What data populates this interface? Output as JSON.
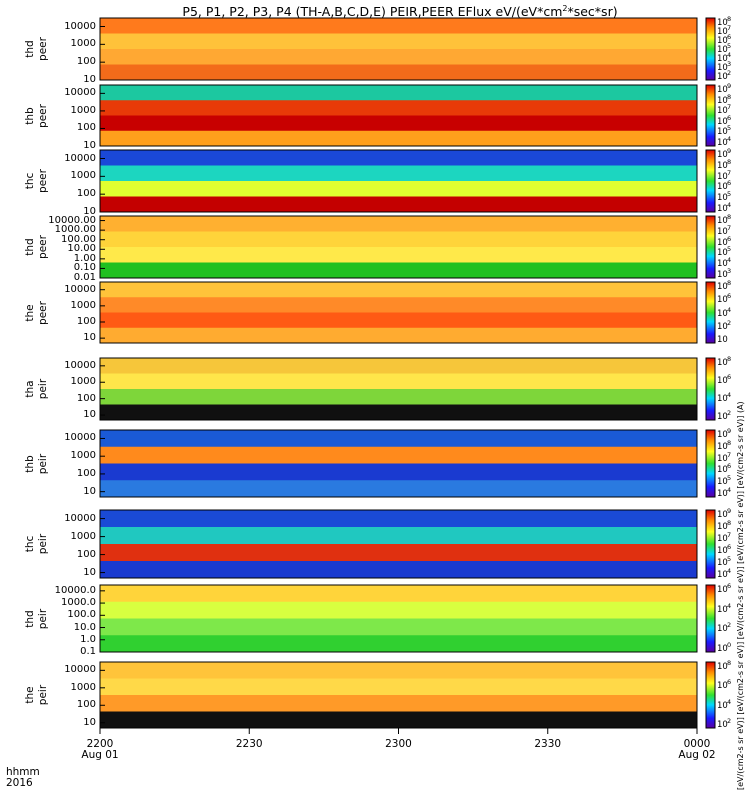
{
  "chart_data": {
    "type": "heatmap",
    "title": "P5, P1, P2, P3, P4 (TH-A,B,C,D,E) PEIR,PEER EFlux eV/(eV*cm^2*sec*sr)",
    "title_prefix": "P5, P1, P2, P3, P4 (TH-A,B,C,D,E) PEIR,PEER EFlux eV/(eV*cm",
    "title_sup": "2",
    "title_suffix": "*sec*sr)",
    "colorbar_title": "[eV/(cm2-s sr eV)] [eV/(cm2-s sr eV)] [eV/(cm2-s sr eV)] [eV/(cm2-s sr eV)] [eV/(cm2-s sr eV)] (A)",
    "x_time_labels": [
      "2200",
      "2230",
      "2300",
      "2330",
      "0000"
    ],
    "x_date_labels": [
      "Aug 01",
      "",
      "",
      "",
      "Aug 02"
    ],
    "x_prefix_top": "hhmm",
    "x_prefix_bottom": "2016",
    "panels": [
      {
        "label": [
          "thd",
          "peer"
        ],
        "y_ticks": [
          "10000",
          "1000",
          "100",
          "10"
        ],
        "ylim": [
          10,
          30000
        ],
        "y_scale": "log",
        "cb_ticks": [
          "10",
          "10",
          "10",
          "10",
          "10",
          "10",
          "10"
        ],
        "cb_exp": [
          "8",
          "7",
          "6",
          "5",
          "4",
          "3",
          "2"
        ],
        "colors": [
          "#ff7a1c",
          "#ffc23a",
          "#ffa833",
          "#f36b1a"
        ]
      },
      {
        "label": [
          "thb",
          "peer"
        ],
        "y_ticks": [
          "10000",
          "1000",
          "100",
          "10"
        ],
        "ylim": [
          10,
          30000
        ],
        "y_scale": "log",
        "cb_ticks": [
          "10",
          "10",
          "10",
          "10",
          "10",
          "10"
        ],
        "cb_exp": [
          "9",
          "8",
          "7",
          "6",
          "5",
          "4"
        ],
        "colors": [
          "#1cc8a0",
          "#e83a08",
          "#c80000",
          "#ff9f1c"
        ]
      },
      {
        "label": [
          "thc",
          "peer"
        ],
        "y_ticks": [
          "10000",
          "1000",
          "100",
          "10"
        ],
        "ylim": [
          10,
          30000
        ],
        "y_scale": "log",
        "cb_ticks": [
          "10",
          "10",
          "10",
          "10",
          "10",
          "10"
        ],
        "cb_exp": [
          "9",
          "8",
          "7",
          "6",
          "5",
          "4"
        ],
        "colors": [
          "#1a48d8",
          "#1cd6c0",
          "#e0ff30",
          "#c40000"
        ]
      },
      {
        "label": [
          "thd",
          "peer"
        ],
        "y_ticks": [
          "10000.00",
          "1000.00",
          "100.00",
          "10.00",
          "1.00",
          "0.10",
          "0.01"
        ],
        "ylim": [
          0.01,
          30000
        ],
        "y_scale": "log",
        "cb_ticks": [
          "10",
          "10",
          "10",
          "10",
          "10",
          "10"
        ],
        "cb_exp": [
          "8",
          "7",
          "6",
          "5",
          "4",
          "3"
        ],
        "colors": [
          "#ffb030",
          "#ffd43a",
          "#ffe94a",
          "#20c020"
        ]
      },
      {
        "label": [
          "the",
          "peer"
        ],
        "y_ticks": [
          "10000",
          "1000",
          "100",
          "10"
        ],
        "ylim": [
          5,
          30000
        ],
        "y_scale": "log",
        "cb_ticks": [
          "10",
          "10",
          "10",
          "10",
          "10"
        ],
        "cb_exp": [
          "8",
          "6",
          "4",
          "2",
          ""
        ],
        "colors": [
          "#ffc33a",
          "#ff8a28",
          "#ff5a14",
          "#ffab30"
        ]
      },
      {
        "label": [
          "tha",
          "peir"
        ],
        "y_ticks": [
          "10000",
          "1000",
          "100",
          "10"
        ],
        "ylim": [
          5,
          30000
        ],
        "y_scale": "log",
        "cb_ticks": [
          "10",
          "10",
          "10",
          "10"
        ],
        "cb_exp": [
          "8",
          "6",
          "4",
          "2"
        ],
        "colors": [
          "#f6c63a",
          "#ffe64a",
          "#7ed63a",
          "#101010"
        ]
      },
      {
        "label": [
          "thb",
          "peir"
        ],
        "y_ticks": [
          "10000",
          "1000",
          "100",
          "10"
        ],
        "ylim": [
          5,
          30000
        ],
        "y_scale": "log",
        "cb_ticks": [
          "10",
          "10",
          "10",
          "10",
          "10",
          "10"
        ],
        "cb_exp": [
          "9",
          "8",
          "7",
          "6",
          "5",
          "4"
        ],
        "colors": [
          "#1a5ad6",
          "#ff8a1c",
          "#1a3ad0",
          "#2a7ae0"
        ]
      },
      {
        "label": [
          "thc",
          "peir"
        ],
        "y_ticks": [
          "10000",
          "1000",
          "100",
          "10"
        ],
        "ylim": [
          5,
          30000
        ],
        "y_scale": "log",
        "cb_ticks": [
          "10",
          "10",
          "10",
          "10",
          "10",
          "10"
        ],
        "cb_exp": [
          "9",
          "8",
          "7",
          "6",
          "5",
          "4"
        ],
        "colors": [
          "#1a4ad6",
          "#20c8c0",
          "#e03010",
          "#1a3ad0"
        ]
      },
      {
        "label": [
          "thd",
          "peir"
        ],
        "y_ticks": [
          "10000.0",
          "1000.0",
          "100.0",
          "10.0",
          "1.0",
          "0.1"
        ],
        "ylim": [
          0.1,
          30000
        ],
        "y_scale": "log",
        "cb_ticks": [
          "10",
          "10",
          "10",
          "10"
        ],
        "cb_exp": [
          "6",
          "4",
          "2",
          "0"
        ],
        "colors": [
          "#ffd43a",
          "#d8ff40",
          "#7ee84a",
          "#30d030"
        ]
      },
      {
        "label": [
          "the",
          "peir"
        ],
        "y_ticks": [
          "10000",
          "1000",
          "100",
          "10"
        ],
        "ylim": [
          5,
          30000
        ],
        "y_scale": "log",
        "cb_ticks": [
          "10",
          "10",
          "10",
          "10"
        ],
        "cb_exp": [
          "8",
          "6",
          "4",
          "2"
        ],
        "colors": [
          "#ffc43a",
          "#ffd948",
          "#ff9a28",
          "#101010"
        ]
      }
    ]
  }
}
